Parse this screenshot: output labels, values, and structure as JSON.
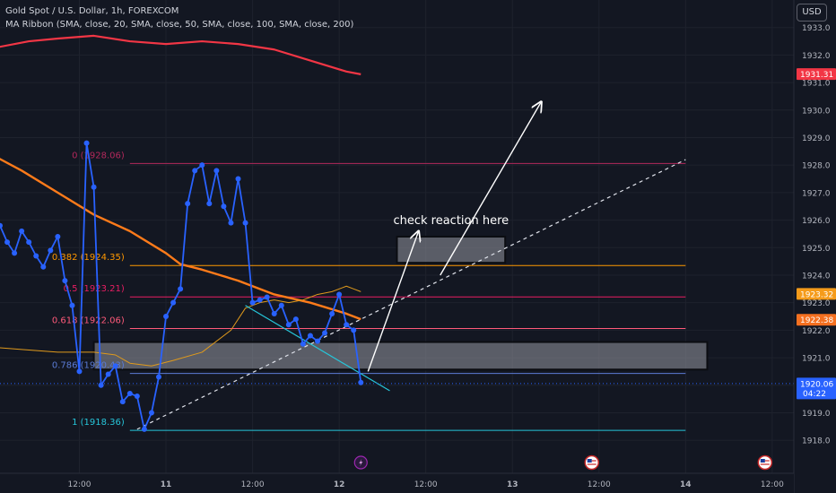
{
  "header": {
    "title": "Gold Spot / U.S. Dollar, 1h, FOREXCOM",
    "indicator": "MA Ribbon (SMA, close, 20, SMA, close, 50, SMA, close, 100, SMA, close, 200)"
  },
  "currency_button": "USD",
  "chart_data": {
    "type": "line",
    "title": "Gold Spot / U.S. Dollar, 1h, FOREXCOM",
    "ylim": [
      1916.8,
      1934.0
    ],
    "y_ticks": [
      1918,
      1919,
      1920,
      1921,
      1922,
      1923,
      1924,
      1925,
      1926,
      1927,
      1928,
      1929,
      1930,
      1931,
      1932,
      1933
    ],
    "x_ticks": [
      {
        "label": "12:00",
        "x": 13
      },
      {
        "label": "11",
        "x": 25
      },
      {
        "label": "12:00",
        "x": 37
      },
      {
        "label": "12",
        "x": 49
      },
      {
        "label": "12:00",
        "x": 61
      },
      {
        "label": "13",
        "x": 73
      },
      {
        "label": "12:00",
        "x": 85
      },
      {
        "label": "14",
        "x": 97
      },
      {
        "label": "12:00",
        "x": 109
      }
    ],
    "xlim": [
      2,
      112
    ],
    "price_series": {
      "name": "Gold Spot / U.S. Dollar",
      "color": "#2962ff",
      "x": [
        2,
        3,
        4,
        5,
        6,
        7,
        8,
        9,
        10,
        11,
        12,
        13,
        14,
        15,
        16,
        17,
        18,
        19,
        20,
        21,
        22,
        23,
        24,
        25,
        26,
        27,
        28,
        29,
        30,
        31,
        32,
        33,
        34,
        35,
        36,
        37,
        38,
        39,
        40,
        41,
        42,
        43,
        44,
        45,
        46,
        47,
        48,
        49,
        50,
        51,
        52
      ],
      "y": [
        1925.8,
        1925.2,
        1924.8,
        1925.6,
        1925.2,
        1924.7,
        1924.3,
        1924.9,
        1925.4,
        1923.8,
        1922.9,
        1920.5,
        1928.8,
        1927.2,
        1920.0,
        1920.4,
        1920.7,
        1919.4,
        1919.7,
        1919.6,
        1918.4,
        1919.0,
        1920.3,
        1922.5,
        1923.0,
        1923.5,
        1926.6,
        1927.8,
        1928.0,
        1926.6,
        1927.8,
        1926.5,
        1925.9,
        1927.5,
        1925.9,
        1923.0,
        1923.1,
        1923.2,
        1922.6,
        1922.9,
        1922.2,
        1922.4,
        1921.5,
        1921.8,
        1921.6,
        1921.9,
        1922.6,
        1923.3,
        1922.2,
        1922.0,
        1920.1
      ]
    },
    "moving_averages": [
      {
        "color": "#f23645",
        "x": [
          0,
          6,
          10,
          15,
          20,
          25,
          30,
          35,
          40,
          45,
          50,
          52
        ],
        "y": [
          1932.2,
          1932.5,
          1932.6,
          1932.7,
          1932.5,
          1932.4,
          1932.5,
          1932.4,
          1932.2,
          1931.8,
          1931.4,
          1931.3
        ]
      },
      {
        "color": "#ff7b1a",
        "x": [
          0,
          5,
          10,
          15,
          20,
          25,
          27,
          30,
          35,
          40,
          45,
          50,
          52
        ],
        "y": [
          1928.5,
          1927.8,
          1927.0,
          1926.2,
          1925.6,
          1924.8,
          1924.4,
          1924.2,
          1923.8,
          1923.3,
          1923.0,
          1922.6,
          1922.4
        ]
      },
      {
        "color": "#e09a1c",
        "x": [
          0,
          5,
          10,
          15,
          18,
          20,
          23,
          26,
          30,
          34,
          36,
          38,
          40,
          42,
          44,
          46,
          48,
          50,
          51,
          52
        ],
        "y": [
          1921.4,
          1921.3,
          1921.2,
          1921.2,
          1921.1,
          1920.8,
          1920.7,
          1920.9,
          1921.2,
          1922.0,
          1922.8,
          1923.0,
          1923.1,
          1923.0,
          1923.1,
          1923.3,
          1923.4,
          1923.6,
          1923.5,
          1923.4
        ]
      }
    ],
    "fib_levels": [
      {
        "ratio": "0",
        "label": "0 (1928.06)",
        "value": 1928.06,
        "color": "#b2285b"
      },
      {
        "ratio": "0.382",
        "label": "0.382 (1924.35)",
        "value": 1924.35,
        "color": "#ff9800"
      },
      {
        "ratio": "0.5",
        "label": "0.5 (1923.21)",
        "value": 1923.21,
        "color": "#e91e63"
      },
      {
        "ratio": "0.618",
        "label": "0.618 (1922.06)",
        "value": 1922.06,
        "color": "#ff5a7a"
      },
      {
        "ratio": "0.786",
        "label": "0.786 (1920.43)",
        "value": 1920.43,
        "color": "#5b7bd6"
      },
      {
        "ratio": "1",
        "label": "1 (1918.36)",
        "value": 1918.36,
        "color": "#26c6da"
      }
    ],
    "fib_x_range": [
      20,
      97
    ],
    "zones": [
      {
        "x": [
          15,
          100
        ],
        "y": [
          1920.57,
          1921.57
        ],
        "fill": "rgba(150,152,160,0.55)"
      },
      {
        "x": [
          57,
          72
        ],
        "y": [
          1924.45,
          1925.4
        ],
        "fill": "rgba(150,152,160,0.55)"
      }
    ],
    "annotation": "check reaction here",
    "annotation_pos": {
      "x": 56.5,
      "y": 1925.85
    },
    "trendlines": [
      {
        "style": "dashed",
        "color": "#e0e3eb",
        "x": [
          21,
          97
        ],
        "y": [
          1918.4,
          1928.2
        ]
      },
      {
        "style": "solid",
        "color": "#26c6da",
        "x": [
          36,
          56
        ],
        "y": [
          1922.9,
          1919.8
        ]
      }
    ],
    "arrows": [
      {
        "x": [
          53,
          60
        ],
        "y": [
          1920.5,
          1925.6
        ]
      },
      {
        "x": [
          63,
          77
        ],
        "y": [
          1924.0,
          1930.3
        ]
      }
    ],
    "current_price_line": {
      "value": 1920.06,
      "color": "#2962ff"
    },
    "price_badges": [
      {
        "text": "1931.31",
        "value": 1931.31,
        "color": "#f23645"
      },
      {
        "text": "1923.32",
        "value": 1923.32,
        "color": "#f59b1a"
      },
      {
        "text": "1922.38",
        "value": 1922.38,
        "color": "#f57020"
      },
      {
        "text": "1920.06",
        "sub": "04:22",
        "value": 1920.06,
        "color": "#2962ff"
      }
    ],
    "event_icons": [
      {
        "kind": "lightning-icon",
        "x": 52
      },
      {
        "kind": "us-flag-icon",
        "x": 84
      },
      {
        "kind": "us-flag-icon",
        "x": 108
      }
    ]
  }
}
